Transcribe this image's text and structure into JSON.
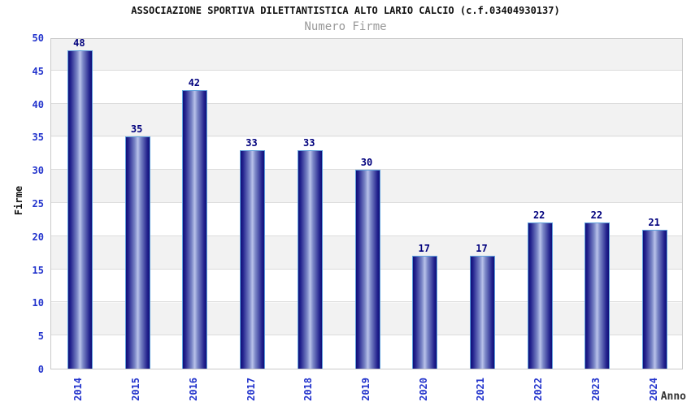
{
  "header": {
    "title": "ASSOCIAZIONE SPORTIVA DILETTANTISTICA ALTO LARIO CALCIO (c.f.03404930137)",
    "subtitle": "Numero Firme"
  },
  "colors": {
    "title": "#111111",
    "subtitle": "#999999",
    "tick_label": "#2233cc",
    "value_label": "#00007d",
    "bar_edge": "#0f0f78",
    "bar_center": "#b9c2ea",
    "bar_border": "#5ea0dd",
    "band_gray": "#f2f2f2",
    "band_white": "#ffffff",
    "gridline": "#dcdcdc",
    "plot_border": "#c9c9c9"
  },
  "chart_data": {
    "type": "bar",
    "title": "ASSOCIAZIONE SPORTIVA DILETTANTISTICA ALTO LARIO CALCIO (c.f.03404930137)",
    "subtitle": "Numero Firme",
    "categories": [
      "2014",
      "2015",
      "2016",
      "2017",
      "2018",
      "2019",
      "2020",
      "2021",
      "2022",
      "2023",
      "2024"
    ],
    "values": [
      48,
      35,
      42,
      33,
      33,
      30,
      17,
      17,
      22,
      22,
      21
    ],
    "xlabel": "Anno",
    "ylabel": "Firme",
    "ylim": [
      0,
      50
    ],
    "yticks": [
      0,
      5,
      10,
      15,
      20,
      25,
      30,
      35,
      40,
      45,
      50
    ],
    "grid": "horizontal-bands-alternating",
    "legend_position": "none",
    "bar_value_labels": true,
    "x_tick_rotation_deg": 90
  }
}
